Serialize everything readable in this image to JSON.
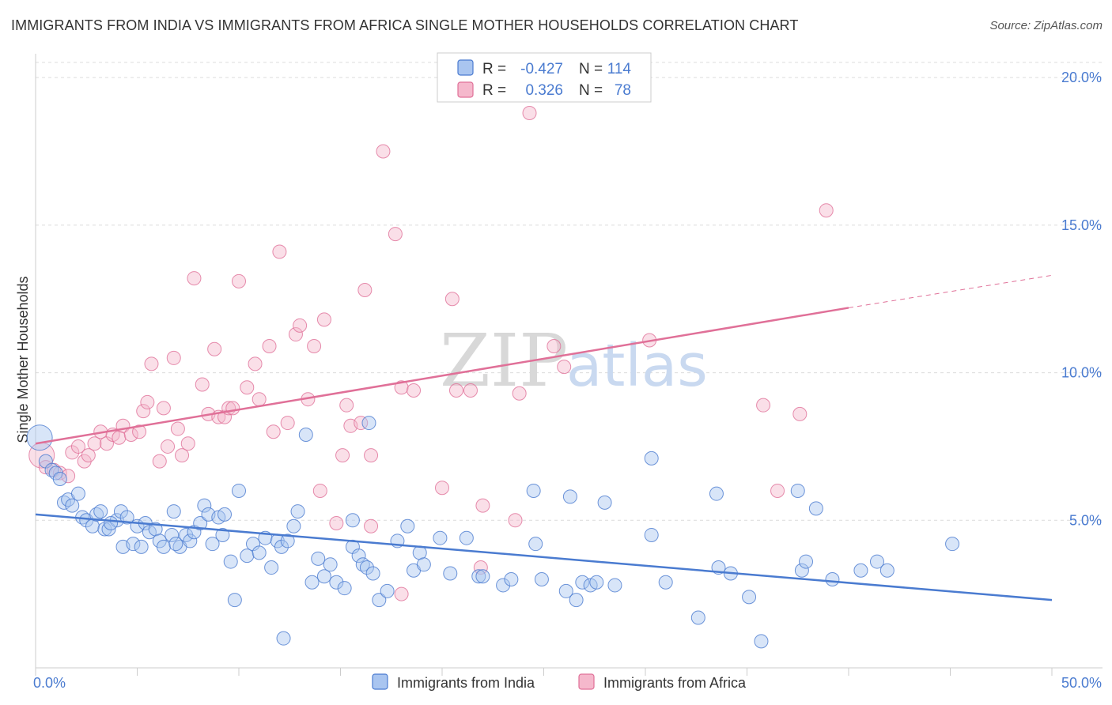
{
  "title": "IMMIGRANTS FROM INDIA VS IMMIGRANTS FROM AFRICA SINGLE MOTHER HOUSEHOLDS CORRELATION CHART",
  "source": "Source: ZipAtlas.com",
  "watermark": {
    "part1": "ZIP",
    "part2": "atlas"
  },
  "colors": {
    "india": "#4a7bd0",
    "india_fill": "#a9c5f0",
    "africa": "#e07098",
    "africa_fill": "#f5b8cc",
    "tick": "#4a7bd0"
  },
  "legend": {
    "india": {
      "r_label": "R =",
      "r_value": "-0.427",
      "n_label": "N =",
      "n_value": "114"
    },
    "africa": {
      "r_label": "R =",
      "r_value": "0.326",
      "n_label": "N =",
      "n_value": "78"
    }
  },
  "bottom_legend": {
    "india": "Immigrants from India",
    "africa": "Immigrants from Africa"
  },
  "chart_data": {
    "type": "scatter",
    "ylabel": "Single Mother Households",
    "xlim": [
      0,
      50
    ],
    "ylim": [
      0,
      20.5
    ],
    "x_ticks": [
      "0.0%",
      "50.0%"
    ],
    "y_ticks": [
      {
        "value": 5,
        "label": "5.0%"
      },
      {
        "value": 10,
        "label": "10.0%"
      },
      {
        "value": 15,
        "label": "15.0%"
      },
      {
        "value": 20,
        "label": "20.0%"
      }
    ],
    "grid": true,
    "series": [
      {
        "name": "Immigrants from India",
        "trend": {
          "x1": 0,
          "y1": 5.2,
          "x2": 50,
          "y2": 2.3
        },
        "points": [
          [
            0.2,
            7.8
          ],
          [
            0.5,
            7.0
          ],
          [
            0.8,
            6.7
          ],
          [
            1.0,
            6.6
          ],
          [
            1.2,
            6.4
          ],
          [
            1.4,
            5.6
          ],
          [
            1.6,
            5.7
          ],
          [
            1.8,
            5.5
          ],
          [
            2.1,
            5.9
          ],
          [
            2.3,
            5.1
          ],
          [
            2.5,
            5.0
          ],
          [
            2.8,
            4.8
          ],
          [
            3.0,
            5.2
          ],
          [
            3.2,
            5.3
          ],
          [
            3.4,
            4.7
          ],
          [
            3.6,
            4.7
          ],
          [
            4.0,
            5.0
          ],
          [
            4.2,
            5.3
          ],
          [
            4.3,
            4.1
          ],
          [
            4.5,
            5.1
          ],
          [
            4.8,
            4.2
          ],
          [
            5.0,
            4.8
          ],
          [
            5.2,
            4.1
          ],
          [
            5.4,
            4.9
          ],
          [
            5.6,
            4.6
          ],
          [
            5.9,
            4.7
          ],
          [
            6.1,
            4.3
          ],
          [
            6.3,
            4.1
          ],
          [
            6.7,
            4.5
          ],
          [
            6.8,
            5.3
          ],
          [
            7.1,
            4.1
          ],
          [
            7.4,
            4.5
          ],
          [
            7.6,
            4.3
          ],
          [
            7.8,
            4.6
          ],
          [
            8.1,
            4.9
          ],
          [
            8.3,
            5.5
          ],
          [
            8.5,
            5.2
          ],
          [
            8.7,
            4.2
          ],
          [
            9.0,
            5.1
          ],
          [
            9.3,
            5.2
          ],
          [
            9.6,
            3.6
          ],
          [
            9.8,
            2.3
          ],
          [
            10.0,
            6.0
          ],
          [
            10.4,
            3.8
          ],
          [
            10.7,
            4.2
          ],
          [
            11.0,
            3.9
          ],
          [
            11.3,
            4.4
          ],
          [
            11.6,
            3.4
          ],
          [
            11.9,
            4.3
          ],
          [
            12.1,
            4.1
          ],
          [
            12.4,
            4.3
          ],
          [
            12.7,
            4.8
          ],
          [
            12.9,
            5.3
          ],
          [
            13.3,
            7.9
          ],
          [
            13.6,
            2.9
          ],
          [
            13.9,
            3.7
          ],
          [
            14.2,
            3.1
          ],
          [
            14.5,
            3.5
          ],
          [
            14.8,
            2.9
          ],
          [
            15.2,
            2.7
          ],
          [
            15.6,
            4.1
          ],
          [
            15.9,
            3.8
          ],
          [
            16.1,
            3.5
          ],
          [
            16.3,
            3.4
          ],
          [
            16.6,
            3.2
          ],
          [
            16.9,
            2.3
          ],
          [
            17.3,
            2.6
          ],
          [
            17.8,
            4.3
          ],
          [
            18.3,
            4.8
          ],
          [
            18.6,
            3.3
          ],
          [
            18.9,
            3.9
          ],
          [
            19.1,
            3.5
          ],
          [
            19.9,
            4.4
          ],
          [
            20.4,
            3.2
          ],
          [
            21.2,
            4.4
          ],
          [
            21.8,
            3.1
          ],
          [
            22.0,
            3.1
          ],
          [
            23.0,
            2.8
          ],
          [
            23.4,
            3.0
          ],
          [
            24.5,
            6.0
          ],
          [
            24.6,
            4.2
          ],
          [
            24.9,
            3.0
          ],
          [
            26.1,
            2.6
          ],
          [
            26.3,
            5.8
          ],
          [
            26.6,
            2.3
          ],
          [
            26.9,
            2.9
          ],
          [
            27.3,
            2.8
          ],
          [
            27.6,
            2.9
          ],
          [
            28.5,
            2.8
          ],
          [
            30.3,
            7.1
          ],
          [
            30.3,
            4.5
          ],
          [
            32.6,
            1.7
          ],
          [
            33.5,
            5.9
          ],
          [
            33.6,
            3.4
          ],
          [
            34.2,
            3.2
          ],
          [
            35.1,
            2.4
          ],
          [
            35.7,
            0.9
          ],
          [
            37.5,
            6.0
          ],
          [
            37.7,
            3.3
          ],
          [
            37.9,
            3.6
          ],
          [
            38.4,
            5.4
          ],
          [
            39.2,
            3.0
          ],
          [
            40.6,
            3.3
          ],
          [
            41.4,
            3.6
          ],
          [
            41.9,
            3.3
          ],
          [
            45.1,
            4.2
          ],
          [
            12.2,
            1.0
          ],
          [
            15.6,
            5.0
          ],
          [
            28.0,
            5.6
          ],
          [
            31.0,
            2.9
          ],
          [
            3.7,
            4.9
          ],
          [
            6.9,
            4.2
          ],
          [
            9.2,
            4.5
          ],
          [
            16.4,
            8.3
          ]
        ]
      },
      {
        "name": "Immigrants from Africa",
        "trend": {
          "x1": 0,
          "y1": 7.6,
          "x2": 40,
          "y2": 12.2,
          "x_dash_end": 50,
          "y_dash_end": 13.3
        },
        "points": [
          [
            0.3,
            7.2
          ],
          [
            0.5,
            6.8
          ],
          [
            0.9,
            6.7
          ],
          [
            1.2,
            6.6
          ],
          [
            1.6,
            6.5
          ],
          [
            1.8,
            7.3
          ],
          [
            2.1,
            7.5
          ],
          [
            2.4,
            7.0
          ],
          [
            2.6,
            7.2
          ],
          [
            2.9,
            7.6
          ],
          [
            3.2,
            8.0
          ],
          [
            3.5,
            7.6
          ],
          [
            3.8,
            7.9
          ],
          [
            4.1,
            7.8
          ],
          [
            4.3,
            8.2
          ],
          [
            4.7,
            7.9
          ],
          [
            5.1,
            8.0
          ],
          [
            5.3,
            8.7
          ],
          [
            5.5,
            9.0
          ],
          [
            5.7,
            10.3
          ],
          [
            6.1,
            7.0
          ],
          [
            6.3,
            8.8
          ],
          [
            6.5,
            7.5
          ],
          [
            6.8,
            10.5
          ],
          [
            7.0,
            8.1
          ],
          [
            7.2,
            7.2
          ],
          [
            7.5,
            7.6
          ],
          [
            7.8,
            13.2
          ],
          [
            8.2,
            9.6
          ],
          [
            8.5,
            8.6
          ],
          [
            8.8,
            10.8
          ],
          [
            9.0,
            8.5
          ],
          [
            9.3,
            8.5
          ],
          [
            9.5,
            8.8
          ],
          [
            9.7,
            8.8
          ],
          [
            10.0,
            13.1
          ],
          [
            10.4,
            9.5
          ],
          [
            10.8,
            10.3
          ],
          [
            11.0,
            9.1
          ],
          [
            11.5,
            10.9
          ],
          [
            11.7,
            8.0
          ],
          [
            12.0,
            14.1
          ],
          [
            12.4,
            8.3
          ],
          [
            12.8,
            11.3
          ],
          [
            13.0,
            11.6
          ],
          [
            13.4,
            9.1
          ],
          [
            13.7,
            10.9
          ],
          [
            14.0,
            6.0
          ],
          [
            14.2,
            11.8
          ],
          [
            14.8,
            4.9
          ],
          [
            15.1,
            7.2
          ],
          [
            15.3,
            8.9
          ],
          [
            15.5,
            8.2
          ],
          [
            16.0,
            8.3
          ],
          [
            16.2,
            12.8
          ],
          [
            16.5,
            7.2
          ],
          [
            17.1,
            17.5
          ],
          [
            17.7,
            14.7
          ],
          [
            18.0,
            9.5
          ],
          [
            18.6,
            9.4
          ],
          [
            20.0,
            6.1
          ],
          [
            20.5,
            12.5
          ],
          [
            20.7,
            9.4
          ],
          [
            21.4,
            9.4
          ],
          [
            21.9,
            3.4
          ],
          [
            22.0,
            5.5
          ],
          [
            23.6,
            5.0
          ],
          [
            24.3,
            18.8
          ],
          [
            23.8,
            9.3
          ],
          [
            25.5,
            10.9
          ],
          [
            26.0,
            10.2
          ],
          [
            30.2,
            11.1
          ],
          [
            35.8,
            8.9
          ],
          [
            36.5,
            6.0
          ],
          [
            37.6,
            8.6
          ],
          [
            38.9,
            15.5
          ],
          [
            18.0,
            2.5
          ],
          [
            16.5,
            4.8
          ]
        ]
      }
    ]
  }
}
